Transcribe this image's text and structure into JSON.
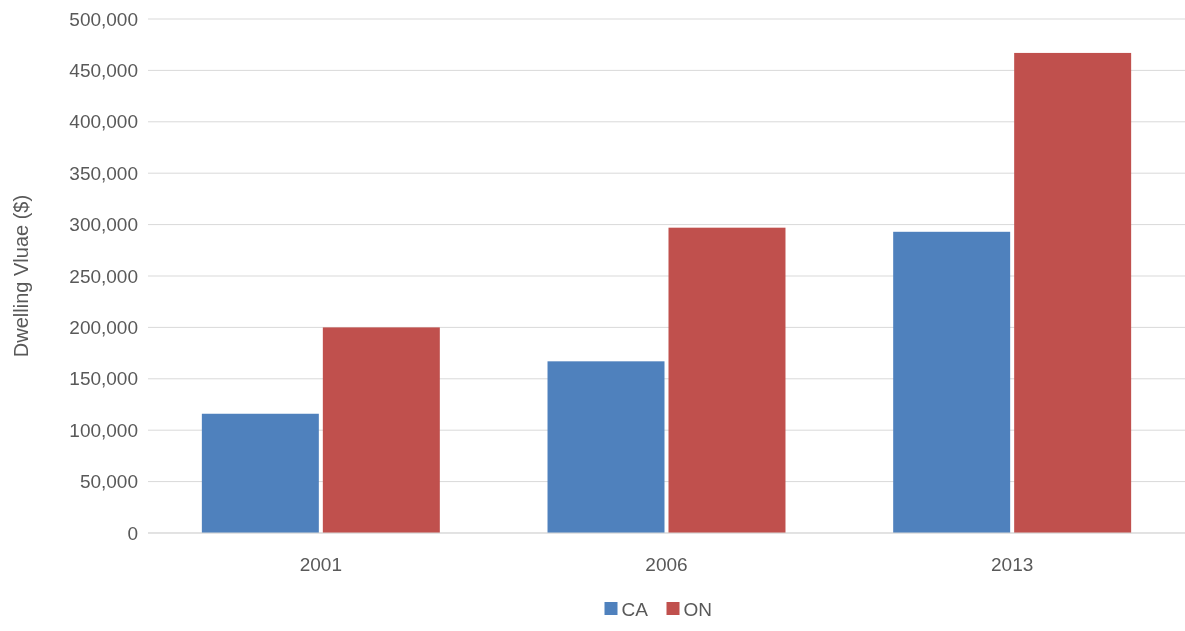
{
  "chart_data": {
    "type": "bar",
    "ylabel": "Dwelling Vluae ($)",
    "categories": [
      "2001",
      "2006",
      "2013"
    ],
    "series": [
      {
        "name": "CA",
        "color": "#4f81bd",
        "values": [
          116000,
          167000,
          293000
        ]
      },
      {
        "name": "ON",
        "color": "#c0504d",
        "values": [
          200000,
          297000,
          467000
        ]
      }
    ],
    "ylim": [
      0,
      500000
    ],
    "yticks": [
      {
        "value": 0,
        "label": "0"
      },
      {
        "value": 50000,
        "label": "50,000"
      },
      {
        "value": 100000,
        "label": "100,000"
      },
      {
        "value": 150000,
        "label": "150,000"
      },
      {
        "value": 200000,
        "label": "200,000"
      },
      {
        "value": 250000,
        "label": "250,000"
      },
      {
        "value": 300000,
        "label": "300,000"
      },
      {
        "value": 350000,
        "label": "350,000"
      },
      {
        "value": 400000,
        "label": "400,000"
      },
      {
        "value": 450000,
        "label": "450,000"
      },
      {
        "value": 500000,
        "label": "500,000"
      }
    ],
    "grid": "y",
    "legend": "bottom"
  }
}
